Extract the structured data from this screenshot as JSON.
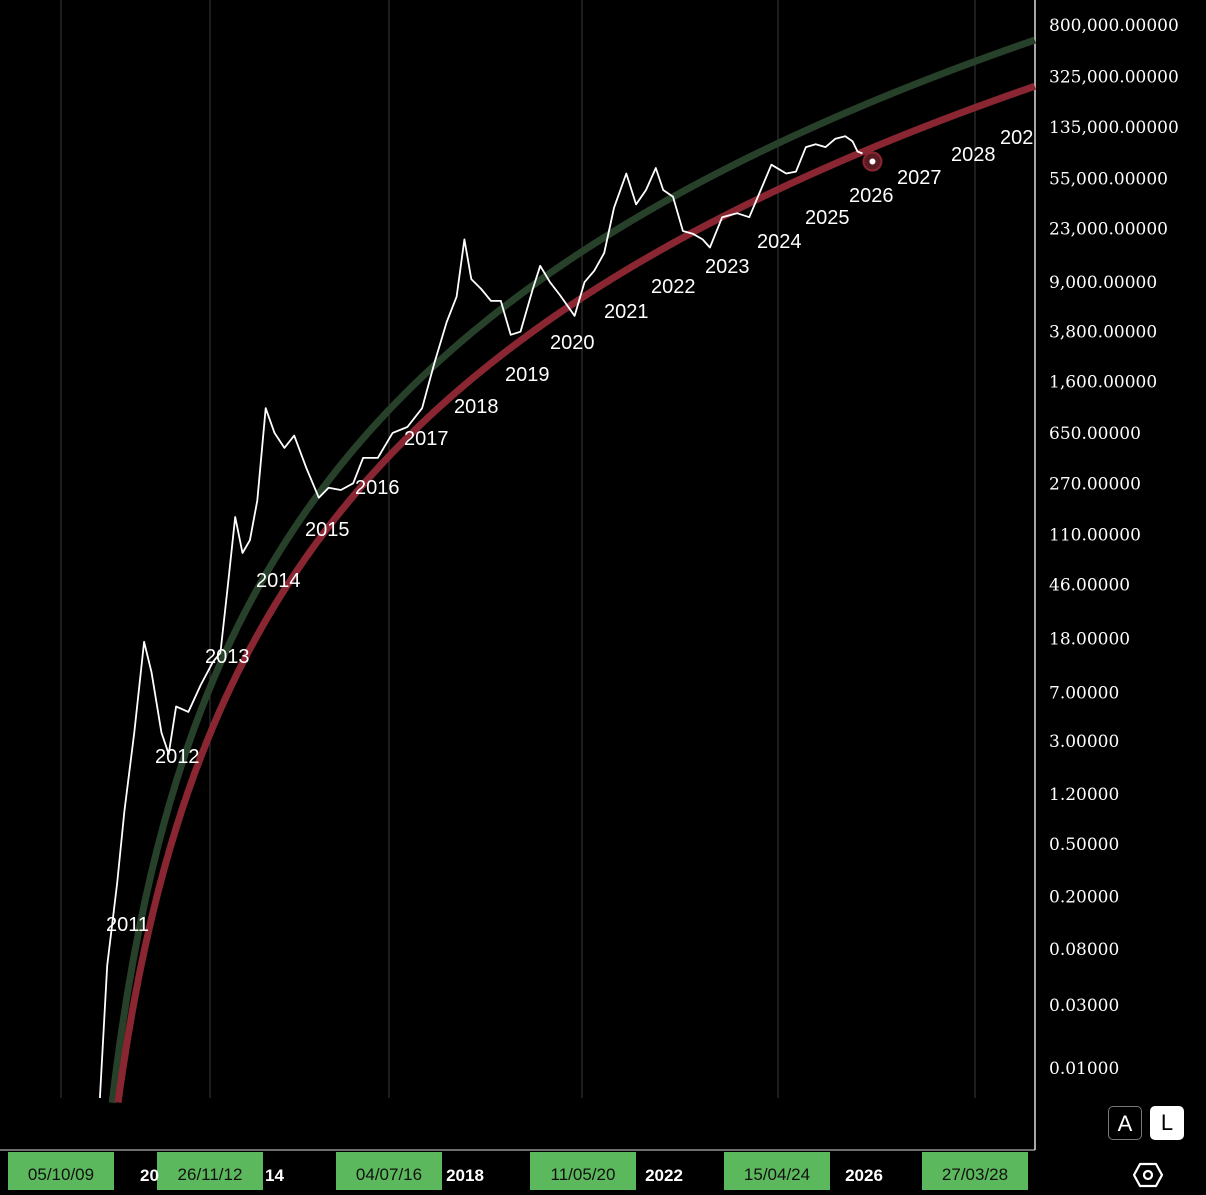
{
  "chart_data": {
    "type": "line",
    "scale": "log",
    "y_ticks": [
      "800,000.00000",
      "325,000.00000",
      "135,000.00000",
      "55,000.00000",
      "23,000.00000",
      "9,000.00000",
      "3,800.00000",
      "1,600.00000",
      "650.00000",
      "270.00000",
      "110.00000",
      "46.00000",
      "18.00000",
      "7.00000",
      "3.00000",
      "1.20000",
      "0.50000",
      "0.20000",
      "0.08000",
      "0.03000",
      "0.01000"
    ],
    "x_axis": {
      "highlighted_dates": [
        "05/10/09",
        "26/11/12",
        "04/07/16",
        "11/05/20",
        "15/04/24",
        "27/03/28"
      ],
      "year_labels": [
        "2018",
        "2022",
        "2026"
      ],
      "partial_labels": [
        "20",
        "14"
      ]
    },
    "curve_year_labels": [
      "2011",
      "2012",
      "2013",
      "2014",
      "2015",
      "2016",
      "2017",
      "2018",
      "2019",
      "2020",
      "2021",
      "2022",
      "2023",
      "2024",
      "2025",
      "2026",
      "2027",
      "2028",
      "202"
    ],
    "series": [
      {
        "name": "",
        "color": "#ffffff",
        "type": "price",
        "points": [
          [
            2010.55,
            0.003
          ],
          [
            2010.7,
            0.06
          ],
          [
            2010.9,
            0.25
          ],
          [
            2011.05,
            0.9
          ],
          [
            2011.25,
            3.5
          ],
          [
            2011.45,
            17
          ],
          [
            2011.6,
            10
          ],
          [
            2011.8,
            3.5
          ],
          [
            2011.95,
            2.4
          ],
          [
            2012.1,
            5.5
          ],
          [
            2012.35,
            5
          ],
          [
            2012.6,
            8
          ],
          [
            2012.85,
            12
          ],
          [
            2013.0,
            14
          ],
          [
            2013.15,
            45
          ],
          [
            2013.3,
            150
          ],
          [
            2013.45,
            80
          ],
          [
            2013.6,
            100
          ],
          [
            2013.75,
            200
          ],
          [
            2013.92,
            1000
          ],
          [
            2014.1,
            650
          ],
          [
            2014.3,
            500
          ],
          [
            2014.5,
            620
          ],
          [
            2014.75,
            350
          ],
          [
            2015.0,
            210
          ],
          [
            2015.2,
            250
          ],
          [
            2015.45,
            240
          ],
          [
            2015.7,
            270
          ],
          [
            2015.9,
            420
          ],
          [
            2016.2,
            420
          ],
          [
            2016.5,
            650
          ],
          [
            2016.8,
            720
          ],
          [
            2017.1,
            1000
          ],
          [
            2017.35,
            2200
          ],
          [
            2017.6,
            4500
          ],
          [
            2017.8,
            7000
          ],
          [
            2017.96,
            19000
          ],
          [
            2018.1,
            9500
          ],
          [
            2018.3,
            8000
          ],
          [
            2018.5,
            6500
          ],
          [
            2018.7,
            6500
          ],
          [
            2018.9,
            3600
          ],
          [
            2019.1,
            3800
          ],
          [
            2019.35,
            8000
          ],
          [
            2019.5,
            12000
          ],
          [
            2019.7,
            9000
          ],
          [
            2019.9,
            7200
          ],
          [
            2020.2,
            5000
          ],
          [
            2020.4,
            9000
          ],
          [
            2020.6,
            11000
          ],
          [
            2020.8,
            15000
          ],
          [
            2021.0,
            33000
          ],
          [
            2021.25,
            60000
          ],
          [
            2021.45,
            35000
          ],
          [
            2021.65,
            45000
          ],
          [
            2021.85,
            66000
          ],
          [
            2022.0,
            45000
          ],
          [
            2022.2,
            40000
          ],
          [
            2022.4,
            22000
          ],
          [
            2022.6,
            21000
          ],
          [
            2022.8,
            19000
          ],
          [
            2022.95,
            16500
          ],
          [
            2023.2,
            28000
          ],
          [
            2023.5,
            30000
          ],
          [
            2023.75,
            28000
          ],
          [
            2023.95,
            42000
          ],
          [
            2024.2,
            70000
          ],
          [
            2024.5,
            60000
          ],
          [
            2024.7,
            62000
          ],
          [
            2024.9,
            95000
          ],
          [
            2025.1,
            100000
          ],
          [
            2025.3,
            95000
          ],
          [
            2025.5,
            110000
          ],
          [
            2025.7,
            115000
          ],
          [
            2025.85,
            105000
          ],
          [
            2025.95,
            88000
          ],
          [
            2026.05,
            85000
          ]
        ]
      },
      {
        "name": "",
        "color": "#27402a",
        "type": "upper_curve"
      },
      {
        "name": "",
        "color": "#8a2632",
        "type": "lower_curve"
      }
    ],
    "current_point": {
      "x": 2026.05,
      "y": 85000
    }
  },
  "buttons": {
    "auto": "A",
    "log": "L"
  },
  "icons": {
    "settings": "settings-icon"
  }
}
